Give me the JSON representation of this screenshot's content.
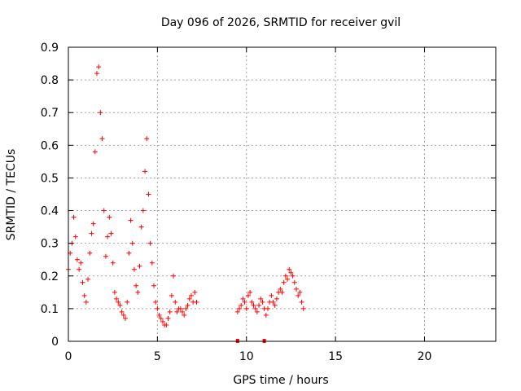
{
  "chart_data": {
    "type": "scatter",
    "title": "Day 096 of 2026, SRMTID for receiver gvil",
    "xlabel": "GPS time / hours",
    "ylabel": "SRMTID / TECUs",
    "xlim": [
      0,
      24
    ],
    "ylim": [
      0,
      0.9
    ],
    "x_ticks": [
      0,
      5,
      10,
      15,
      20
    ],
    "y_ticks": [
      0,
      0.1,
      0.2,
      0.3,
      0.4,
      0.5,
      0.6,
      0.7,
      0.8,
      0.9
    ],
    "grid": true,
    "marker": "+",
    "color": "#ff0000",
    "series": [
      {
        "name": "SRMTID",
        "x": [
          0.0,
          0.1,
          0.2,
          0.3,
          0.4,
          0.5,
          0.6,
          0.7,
          0.8,
          0.9,
          1.0,
          1.1,
          1.2,
          1.3,
          1.4,
          1.5,
          1.6,
          1.7,
          1.8,
          1.9,
          2.0,
          2.1,
          2.2,
          2.3,
          2.4,
          2.5,
          2.6,
          2.7,
          2.8,
          2.9,
          3.0,
          3.1,
          3.2,
          3.3,
          3.4,
          3.5,
          3.6,
          3.7,
          3.8,
          3.9,
          4.0,
          4.1,
          4.2,
          4.3,
          4.4,
          4.5,
          4.6,
          4.7,
          4.8,
          4.9,
          5.0,
          5.1,
          5.2,
          5.3,
          5.4,
          5.5,
          5.6,
          5.7,
          5.8,
          5.9,
          6.0,
          6.1,
          6.2,
          6.3,
          6.4,
          6.5,
          6.6,
          6.7,
          6.8,
          6.9,
          7.0,
          7.1,
          7.2,
          9.5,
          9.6,
          9.7,
          9.8,
          9.9,
          10.0,
          10.1,
          10.2,
          10.3,
          10.4,
          10.5,
          10.6,
          10.7,
          10.8,
          10.9,
          11.0,
          11.1,
          11.2,
          11.3,
          11.4,
          11.5,
          11.6,
          11.7,
          11.8,
          11.9,
          12.0,
          12.1,
          12.2,
          12.3,
          12.4,
          12.5,
          12.6,
          12.7,
          12.8,
          12.9,
          13.0,
          13.1,
          13.2
        ],
        "y": [
          0.22,
          0.27,
          0.3,
          0.38,
          0.32,
          0.25,
          0.22,
          0.24,
          0.18,
          0.14,
          0.12,
          0.19,
          0.27,
          0.33,
          0.36,
          0.58,
          0.82,
          0.84,
          0.7,
          0.62,
          0.4,
          0.26,
          0.32,
          0.38,
          0.33,
          0.24,
          0.15,
          0.13,
          0.12,
          0.11,
          0.09,
          0.08,
          0.07,
          0.12,
          0.27,
          0.37,
          0.3,
          0.22,
          0.17,
          0.15,
          0.23,
          0.35,
          0.4,
          0.52,
          0.62,
          0.45,
          0.3,
          0.24,
          0.17,
          0.12,
          0.1,
          0.08,
          0.07,
          0.06,
          0.05,
          0.05,
          0.07,
          0.09,
          0.14,
          0.2,
          0.12,
          0.09,
          0.1,
          0.1,
          0.09,
          0.08,
          0.1,
          0.11,
          0.13,
          0.14,
          0.12,
          0.15,
          0.12,
          0.09,
          0.1,
          0.11,
          0.13,
          0.12,
          0.1,
          0.14,
          0.15,
          0.12,
          0.11,
          0.1,
          0.09,
          0.11,
          0.13,
          0.12,
          0.1,
          0.08,
          0.1,
          0.12,
          0.14,
          0.12,
          0.11,
          0.13,
          0.15,
          0.16,
          0.15,
          0.18,
          0.2,
          0.19,
          0.22,
          0.21,
          0.2,
          0.18,
          0.16,
          0.14,
          0.15,
          0.12,
          0.1
        ]
      },
      {
        "name": "zero-level markers",
        "marker": "square",
        "x": [
          9.5,
          11.0
        ],
        "y": [
          0,
          0
        ]
      }
    ]
  }
}
